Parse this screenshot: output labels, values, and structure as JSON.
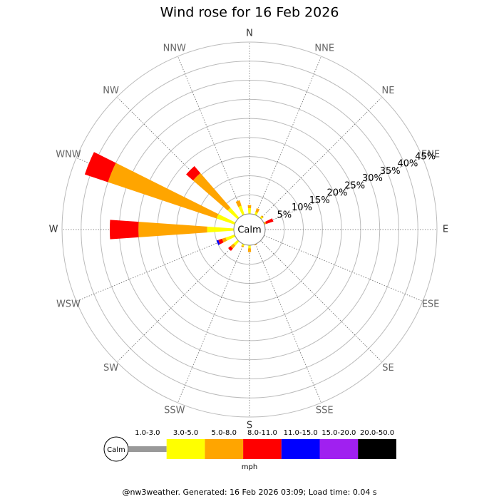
{
  "chart_data": {
    "type": "wind_rose",
    "title": "Wind rose for 16 Feb 2026",
    "directions": [
      "N",
      "NNE",
      "NE",
      "ENE",
      "E",
      "ESE",
      "SE",
      "SSE",
      "S",
      "SSW",
      "SW",
      "WSW",
      "W",
      "WNW",
      "NW",
      "NNW"
    ],
    "center_label": "Calm",
    "rlim": [
      0,
      45
    ],
    "rticks": [
      {
        "value": 5,
        "label": "5%"
      },
      {
        "value": 10,
        "label": "10%"
      },
      {
        "value": 15,
        "label": "15%"
      },
      {
        "value": 20,
        "label": "20%"
      },
      {
        "value": 25,
        "label": "25%"
      },
      {
        "value": 30,
        "label": "30%"
      },
      {
        "value": 35,
        "label": "35%"
      },
      {
        "value": 40,
        "label": "40%"
      },
      {
        "value": 45,
        "label": "45%"
      }
    ],
    "series": [
      {
        "name": "1.0-3.0",
        "color": "#999999",
        "values": [
          0,
          0,
          0,
          0,
          0,
          0,
          0,
          0,
          0,
          0,
          0,
          0,
          0,
          0,
          0,
          0
        ]
      },
      {
        "name": "3.0-5.0",
        "color": "#ffff00",
        "values": [
          1.5,
          0.8,
          0.5,
          0,
          0,
          0,
          0,
          0,
          0.8,
          0.5,
          1.5,
          2.5,
          7,
          5,
          3.5,
          2.5
        ]
      },
      {
        "name": "5.0-8.0",
        "color": "#ffa500",
        "values": [
          0.8,
          1,
          0.3,
          0.5,
          0,
          0,
          0,
          0.3,
          1,
          0.3,
          1,
          1,
          18,
          30,
          12,
          1.5
        ]
      },
      {
        "name": "8.0-11.0",
        "color": "#ff0000",
        "values": [
          0,
          0,
          0,
          2,
          0,
          0,
          0,
          0,
          0,
          0,
          0.8,
          1,
          7.5,
          6.4,
          2.4,
          0
        ]
      },
      {
        "name": "11.0-15.0",
        "color": "#0000ff",
        "values": [
          0,
          0,
          0,
          0,
          0,
          0,
          0,
          0,
          0,
          0,
          0,
          0.5,
          0,
          0,
          0,
          0
        ]
      },
      {
        "name": "15.0-20.0",
        "color": "#a020f0",
        "values": [
          0,
          0,
          0,
          0,
          0,
          0,
          0,
          0,
          0,
          0,
          0,
          0,
          0,
          0,
          0,
          0
        ]
      },
      {
        "name": "20.0-50.0",
        "color": "#000000",
        "values": [
          0,
          0,
          0,
          0,
          0,
          0,
          0,
          0,
          0,
          0,
          0,
          0,
          0,
          0,
          0,
          0
        ]
      }
    ],
    "legend_unit": "mph",
    "footer": "@nw3weather. Generated: 16 Feb 2026 03:09; Load time: 0.04 s"
  }
}
